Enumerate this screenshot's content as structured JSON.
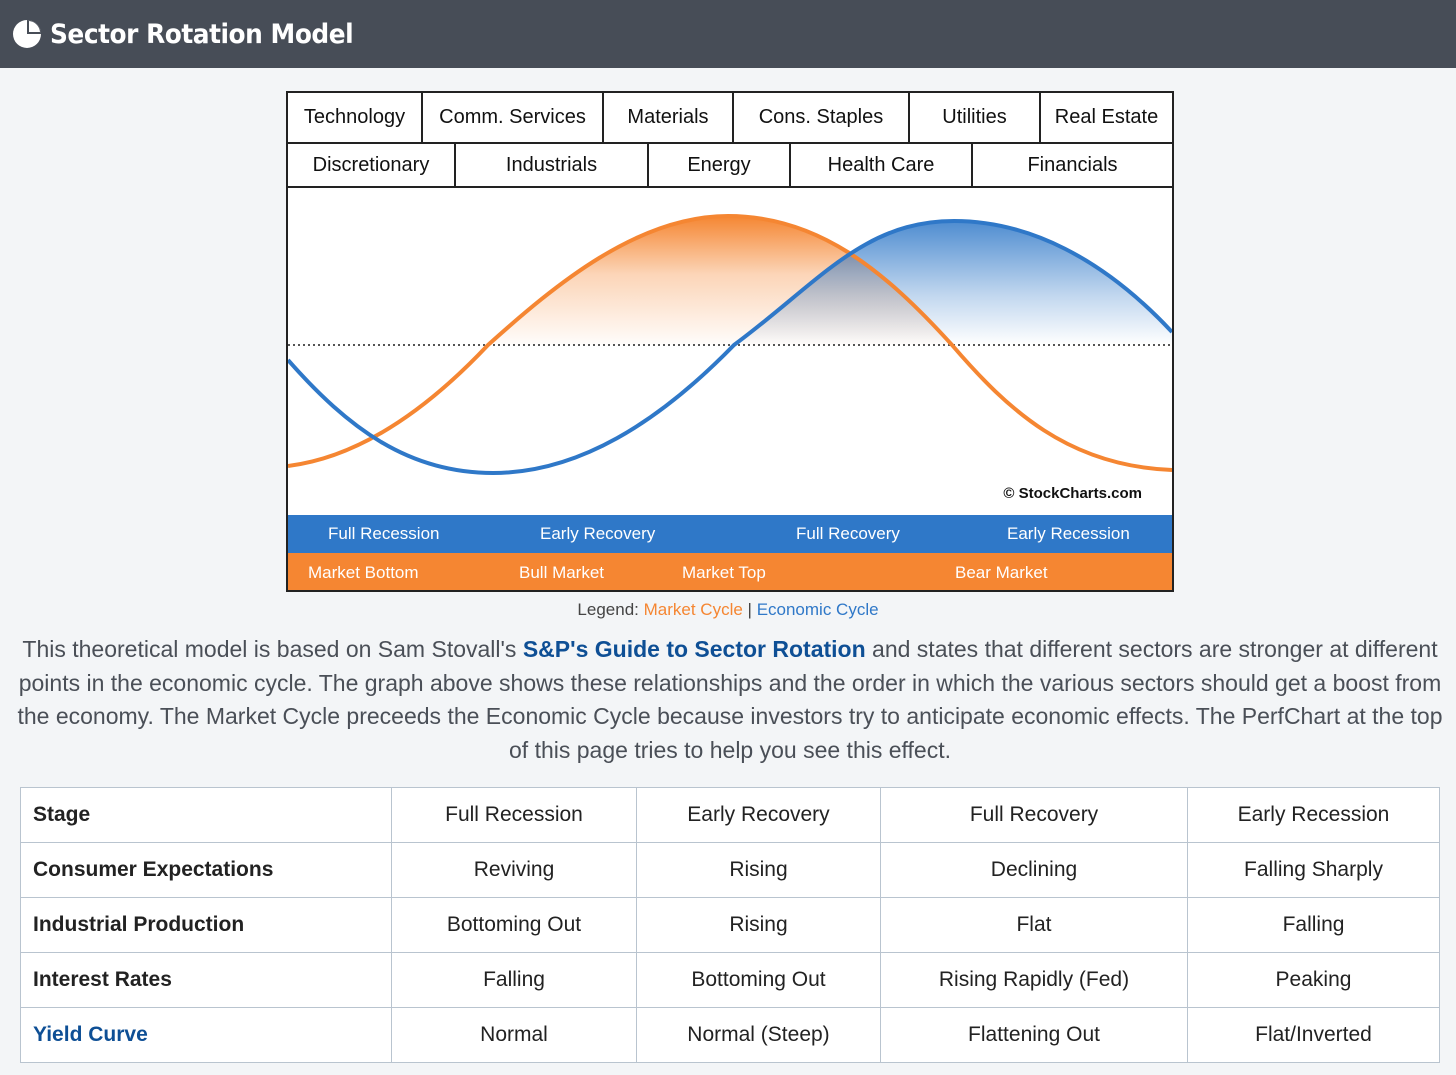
{
  "header": {
    "title": "Sector Rotation Model",
    "icon": "pie-chart-icon"
  },
  "sectors": {
    "row1": [
      "Technology",
      "Comm. Services",
      "Materials",
      "Cons. Staples",
      "Utilities",
      "Real Estate"
    ],
    "row2": [
      "Discretionary",
      "Industrials",
      "Energy",
      "Health Care",
      "Financials"
    ]
  },
  "figure": {
    "copyright": "© StockCharts.com",
    "economic_band": [
      "Full Recession",
      "Early Recovery",
      "Full Recovery",
      "Early Recession"
    ],
    "market_band": [
      "Market Bottom",
      "Bull Market",
      "Market Top",
      "Bear Market"
    ],
    "colors": {
      "market": "#f58632",
      "economic": "#2f78c8"
    }
  },
  "legend": {
    "prefix": "Legend:",
    "market": "Market Cycle",
    "separator": "|",
    "economic": "Economic Cycle"
  },
  "description": {
    "before_link": "This theoretical model is based on Sam Stovall's ",
    "link": "S&P's Guide to Sector Rotation",
    "after_link": " and states that different sectors are stronger at different points in the economic cycle. The graph above shows these relationships and the order in which the various sectors should get a boost from the economy. The Market Cycle preceeds the Economic Cycle because investors try to anticipate economic effects. The PerfChart at the top of this page tries to help you see this effect."
  },
  "table": {
    "rows": [
      {
        "label": "Stage",
        "cells": [
          "Full Recession",
          "Early Recovery",
          "Full Recovery",
          "Early Recession"
        ]
      },
      {
        "label": "Consumer Expectations",
        "cells": [
          "Reviving",
          "Rising",
          "Declining",
          "Falling Sharply"
        ]
      },
      {
        "label": "Industrial Production",
        "cells": [
          "Bottoming Out",
          "Rising",
          "Flat",
          "Falling"
        ]
      },
      {
        "label": "Interest Rates",
        "cells": [
          "Falling",
          "Bottoming Out",
          "Rising Rapidly (Fed)",
          "Peaking"
        ]
      },
      {
        "label": "Yield Curve",
        "cells": [
          "Normal",
          "Normal (Steep)",
          "Flattening Out",
          "Flat/Inverted"
        ]
      }
    ]
  }
}
